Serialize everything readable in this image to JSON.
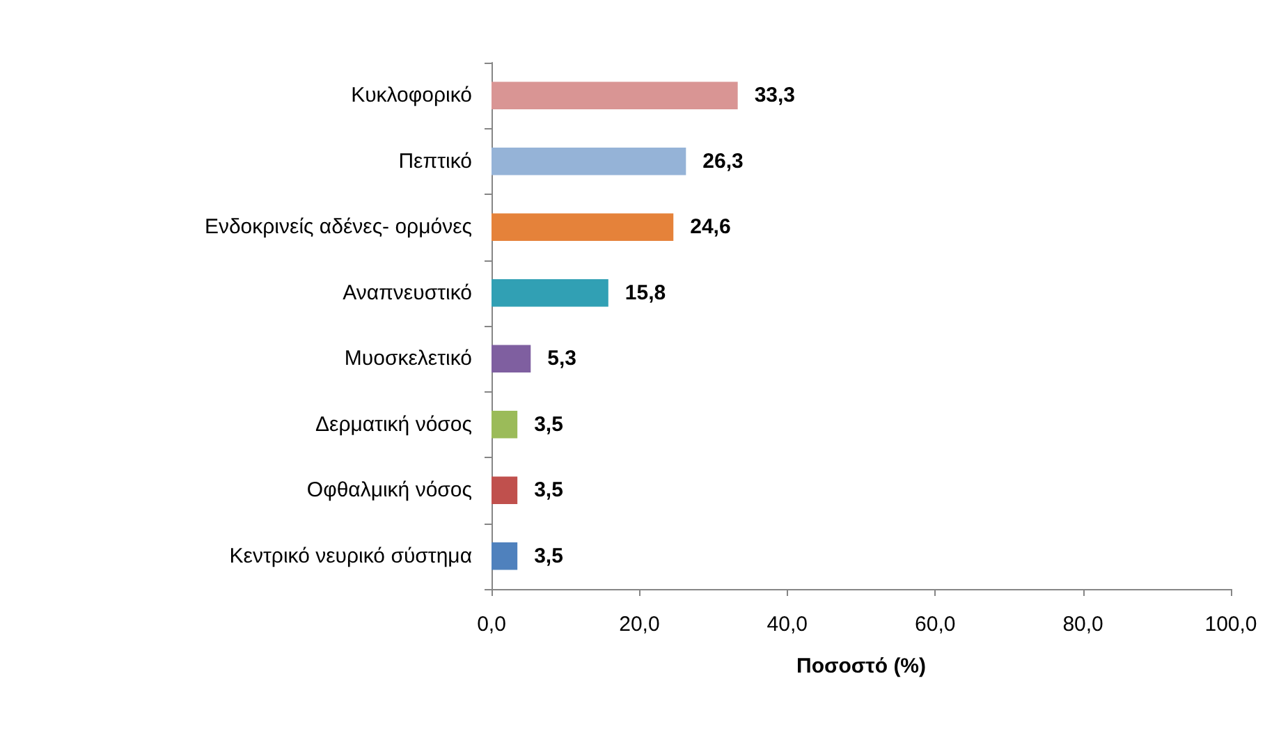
{
  "chart_data": {
    "type": "bar",
    "orientation": "horizontal",
    "xlabel": "Ποσοστό (%)",
    "categories": [
      "Κυκλοφορικό",
      "Πεπτικό",
      "Ενδοκρινείς αδένες- ορμόνες",
      "Αναπνευστικό",
      "Μυοσκελετικό",
      "Δερματική νόσος",
      "Οφθαλμική νόσος",
      "Κεντρικό νευρικό σύστημα"
    ],
    "values": [
      33.3,
      26.3,
      24.6,
      15.8,
      5.3,
      3.5,
      3.5,
      3.5
    ],
    "value_labels": [
      "33,3",
      "26,3",
      "24,6",
      "15,8",
      "5,3",
      "3,5",
      "3,5",
      "3,5"
    ],
    "colors": [
      "#d99594",
      "#95b3d7",
      "#e5823a",
      "#31a0b4",
      "#7f5fa0",
      "#9bbb59",
      "#c0504d",
      "#4f81bd"
    ],
    "xlim": [
      0,
      100
    ],
    "xticks": [
      {
        "value": 0,
        "label": "0,0"
      },
      {
        "value": 20,
        "label": "20,0"
      },
      {
        "value": 40,
        "label": "40,0"
      },
      {
        "value": 60,
        "label": "60,0"
      },
      {
        "value": 80,
        "label": "80,0"
      },
      {
        "value": 100,
        "label": "100,0"
      }
    ],
    "grid": false
  }
}
